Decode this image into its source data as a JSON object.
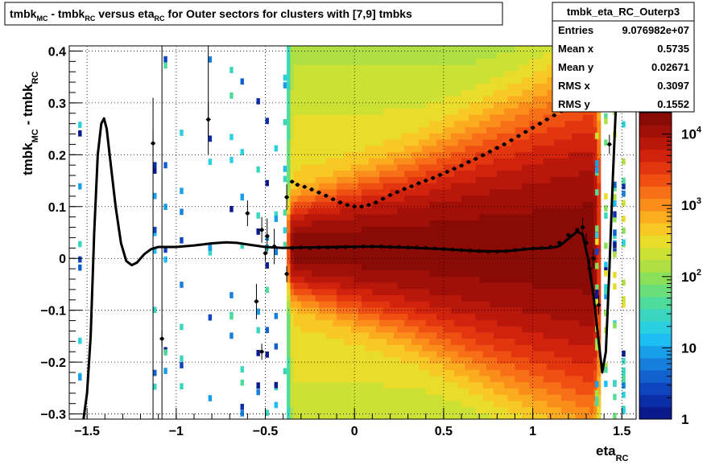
{
  "chart_data": {
    "type": "heatmap",
    "title_parts": [
      "tmbk",
      "MC",
      " - tmbk",
      "RC",
      " versus eta",
      "RC",
      " for Outer sectors for clusters with [7,9] tmbks"
    ],
    "xlabel_main": "eta",
    "xlabel_sub": "RC",
    "ylabel_main": "tmbk",
    "ylabel_sub1": "MC",
    "ylabel_mid": " - tmbk",
    "ylabel_sub2": "RC",
    "xlim": [
      -1.6,
      1.58
    ],
    "ylim": [
      -0.31,
      0.41
    ],
    "x_ticks": [
      {
        "v": -1.5,
        "t": "−1.5"
      },
      {
        "v": -1,
        "t": "−1"
      },
      {
        "v": -0.5,
        "t": "−0.5"
      },
      {
        "v": 0,
        "t": "0"
      },
      {
        "v": 0.5,
        "t": "0.5"
      },
      {
        "v": 1,
        "t": "1"
      },
      {
        "v": 1.5,
        "t": "1.5"
      }
    ],
    "y_ticks": [
      {
        "v": -0.3,
        "t": "−0.3"
      },
      {
        "v": -0.2,
        "t": "−0.2"
      },
      {
        "v": -0.1,
        "t": "−0.1"
      },
      {
        "v": 0,
        "t": "0"
      },
      {
        "v": 0.1,
        "t": "0.1"
      },
      {
        "v": 0.2,
        "t": "0.2"
      },
      {
        "v": 0.3,
        "t": "0.3"
      },
      {
        "v": 0.4,
        "t": "0.4"
      }
    ],
    "grid": true,
    "colorbar": {
      "scale": "log",
      "range": [
        1,
        20000
      ],
      "labels": [
        {
          "v": 1,
          "t": "1"
        },
        {
          "v": 10,
          "t": "10"
        },
        {
          "v": 100,
          "t": "10",
          "sup": "2"
        },
        {
          "v": 1000,
          "t": "10",
          "sup": "3"
        },
        {
          "v": 10000,
          "t": "10",
          "sup": "4"
        }
      ],
      "colors": [
        "#0a1a8c",
        "#0b2ea6",
        "#0e44bd",
        "#1360cf",
        "#167fde",
        "#199fea",
        "#1dbef2",
        "#2ad0e0",
        "#3bd6bf",
        "#4fdb9c",
        "#6ade78",
        "#8be05a",
        "#aee044",
        "#cde134",
        "#e9dc2a",
        "#f8c824",
        "#fbac1f",
        "#fb8e1a",
        "#f76f16",
        "#ef5012",
        "#e3350f",
        "#d0220c",
        "#b8170a",
        "#a01008",
        "#8a0a06"
      ]
    },
    "stats_box": {
      "title": "tmbk_eta_RC_Outerp3",
      "rows": [
        {
          "label": "Entries",
          "value": "9.076982e+07"
        },
        {
          "label": "Mean x",
          "value": "0.5735"
        },
        {
          "label": "Mean y",
          "value": "0.02671"
        },
        {
          "label": "RMS x",
          "value": "0.3097"
        },
        {
          "label": "RMS y",
          "value": "0.1552"
        }
      ]
    },
    "profile_mean": [
      {
        "x": -0.35,
        "y": 0.02
      },
      {
        "x": -0.3,
        "y": 0.021
      },
      {
        "x": -0.25,
        "y": 0.02
      },
      {
        "x": -0.2,
        "y": 0.021
      },
      {
        "x": -0.15,
        "y": 0.021
      },
      {
        "x": -0.1,
        "y": 0.021
      },
      {
        "x": -0.05,
        "y": 0.022
      },
      {
        "x": 0.0,
        "y": 0.022
      },
      {
        "x": 0.05,
        "y": 0.023
      },
      {
        "x": 0.1,
        "y": 0.023
      },
      {
        "x": 0.15,
        "y": 0.023
      },
      {
        "x": 0.2,
        "y": 0.022
      },
      {
        "x": 0.25,
        "y": 0.022
      },
      {
        "x": 0.3,
        "y": 0.021
      },
      {
        "x": 0.35,
        "y": 0.021
      },
      {
        "x": 0.4,
        "y": 0.02
      },
      {
        "x": 0.45,
        "y": 0.019
      },
      {
        "x": 0.5,
        "y": 0.018
      },
      {
        "x": 0.55,
        "y": 0.017
      },
      {
        "x": 0.6,
        "y": 0.016
      },
      {
        "x": 0.65,
        "y": 0.015
      },
      {
        "x": 0.7,
        "y": 0.014
      },
      {
        "x": 0.75,
        "y": 0.013
      },
      {
        "x": 0.8,
        "y": 0.013
      },
      {
        "x": 0.85,
        "y": 0.014
      },
      {
        "x": 0.9,
        "y": 0.016
      },
      {
        "x": 0.95,
        "y": 0.018
      },
      {
        "x": 1.0,
        "y": 0.019
      },
      {
        "x": 1.05,
        "y": 0.02
      },
      {
        "x": 1.1,
        "y": 0.022
      },
      {
        "x": 1.15,
        "y": 0.03
      },
      {
        "x": 1.2,
        "y": 0.045
      },
      {
        "x": 1.25,
        "y": 0.055
      },
      {
        "x": 1.28,
        "y": 0.06
      },
      {
        "x": 1.3,
        "y": 0.03
      },
      {
        "x": 1.32,
        "y": -0.02
      },
      {
        "x": 1.34,
        "y": 0.0
      },
      {
        "x": 1.37,
        "y": -0.09
      },
      {
        "x": 1.43,
        "y": 0.22
      }
    ],
    "profile_rms": [
      {
        "x": -0.35,
        "y": 0.148
      },
      {
        "x": -0.32,
        "y": 0.142
      },
      {
        "x": -0.28,
        "y": 0.138
      },
      {
        "x": -0.24,
        "y": 0.133
      },
      {
        "x": -0.2,
        "y": 0.127
      },
      {
        "x": -0.16,
        "y": 0.121
      },
      {
        "x": -0.12,
        "y": 0.114
      },
      {
        "x": -0.08,
        "y": 0.108
      },
      {
        "x": -0.04,
        "y": 0.103
      },
      {
        "x": 0.0,
        "y": 0.1
      },
      {
        "x": 0.04,
        "y": 0.1
      },
      {
        "x": 0.08,
        "y": 0.103
      },
      {
        "x": 0.12,
        "y": 0.108
      },
      {
        "x": 0.16,
        "y": 0.115
      },
      {
        "x": 0.2,
        "y": 0.122
      },
      {
        "x": 0.24,
        "y": 0.128
      },
      {
        "x": 0.28,
        "y": 0.134
      },
      {
        "x": 0.32,
        "y": 0.139
      },
      {
        "x": 0.36,
        "y": 0.145
      },
      {
        "x": 0.4,
        "y": 0.15
      },
      {
        "x": 0.44,
        "y": 0.155
      },
      {
        "x": 0.48,
        "y": 0.161
      },
      {
        "x": 0.52,
        "y": 0.167
      },
      {
        "x": 0.56,
        "y": 0.173
      },
      {
        "x": 0.6,
        "y": 0.179
      },
      {
        "x": 0.64,
        "y": 0.186
      },
      {
        "x": 0.68,
        "y": 0.192
      },
      {
        "x": 0.72,
        "y": 0.199
      },
      {
        "x": 0.76,
        "y": 0.206
      },
      {
        "x": 0.8,
        "y": 0.213
      },
      {
        "x": 0.84,
        "y": 0.22
      },
      {
        "x": 0.88,
        "y": 0.228
      },
      {
        "x": 0.92,
        "y": 0.236
      },
      {
        "x": 0.96,
        "y": 0.244
      },
      {
        "x": 1.0,
        "y": 0.252
      },
      {
        "x": 1.04,
        "y": 0.26
      },
      {
        "x": 1.08,
        "y": 0.268
      },
      {
        "x": 1.12,
        "y": 0.276
      },
      {
        "x": 1.16,
        "y": 0.284
      },
      {
        "x": 1.2,
        "y": 0.292
      },
      {
        "x": 1.24,
        "y": 0.3
      }
    ],
    "outlier_points": [
      {
        "x": -0.38,
        "y": -0.03
      },
      {
        "x": -0.38,
        "y": 0.118
      },
      {
        "x": -0.45,
        "y": 0.023
      },
      {
        "x": -0.5,
        "y": 0.01
      },
      {
        "x": -0.52,
        "y": 0.055
      },
      {
        "x": -0.55,
        "y": -0.083
      },
      {
        "x": -0.52,
        "y": -0.18
      },
      {
        "x": -0.6,
        "y": 0.087
      },
      {
        "x": -0.82,
        "y": 0.268
      },
      {
        "x": -1.08,
        "y": -0.155
      },
      {
        "x": -1.13,
        "y": 0.222
      },
      {
        "x": -0.49,
        "y": 0.043
      }
    ],
    "fit_curve": [
      {
        "x": -1.52,
        "y": -0.31
      },
      {
        "x": -1.5,
        "y": -0.26
      },
      {
        "x": -1.48,
        "y": -0.15
      },
      {
        "x": -1.46,
        "y": 0.05
      },
      {
        "x": -1.44,
        "y": 0.2
      },
      {
        "x": -1.42,
        "y": 0.26
      },
      {
        "x": -1.405,
        "y": 0.27
      },
      {
        "x": -1.39,
        "y": 0.25
      },
      {
        "x": -1.37,
        "y": 0.19
      },
      {
        "x": -1.34,
        "y": 0.1
      },
      {
        "x": -1.31,
        "y": 0.03
      },
      {
        "x": -1.28,
        "y": -0.005
      },
      {
        "x": -1.25,
        "y": -0.013
      },
      {
        "x": -1.22,
        "y": -0.008
      },
      {
        "x": -1.18,
        "y": 0.008
      },
      {
        "x": -1.14,
        "y": 0.018
      },
      {
        "x": -1.1,
        "y": 0.022
      },
      {
        "x": -1.0,
        "y": 0.022
      },
      {
        "x": -0.9,
        "y": 0.025
      },
      {
        "x": -0.8,
        "y": 0.029
      },
      {
        "x": -0.72,
        "y": 0.031
      },
      {
        "x": -0.66,
        "y": 0.03
      },
      {
        "x": -0.58,
        "y": 0.026
      },
      {
        "x": -0.5,
        "y": 0.022
      },
      {
        "x": -0.4,
        "y": 0.02
      },
      {
        "x": -0.3,
        "y": 0.021
      },
      {
        "x": -0.1,
        "y": 0.022
      },
      {
        "x": 0.1,
        "y": 0.023
      },
      {
        "x": 0.3,
        "y": 0.021
      },
      {
        "x": 0.5,
        "y": 0.018
      },
      {
        "x": 0.7,
        "y": 0.014
      },
      {
        "x": 0.85,
        "y": 0.014
      },
      {
        "x": 1.0,
        "y": 0.019
      },
      {
        "x": 1.1,
        "y": 0.02
      },
      {
        "x": 1.15,
        "y": 0.024
      },
      {
        "x": 1.2,
        "y": 0.038
      },
      {
        "x": 1.25,
        "y": 0.052
      },
      {
        "x": 1.28,
        "y": 0.046
      },
      {
        "x": 1.31,
        "y": 0.0
      },
      {
        "x": 1.34,
        "y": -0.07
      },
      {
        "x": 1.37,
        "y": -0.16
      },
      {
        "x": 1.39,
        "y": -0.22
      },
      {
        "x": 1.41,
        "y": -0.18
      },
      {
        "x": 1.43,
        "y": -0.02
      },
      {
        "x": 1.45,
        "y": 0.16
      },
      {
        "x": 1.47,
        "y": 0.32
      },
      {
        "x": 1.49,
        "y": 0.41
      }
    ]
  }
}
